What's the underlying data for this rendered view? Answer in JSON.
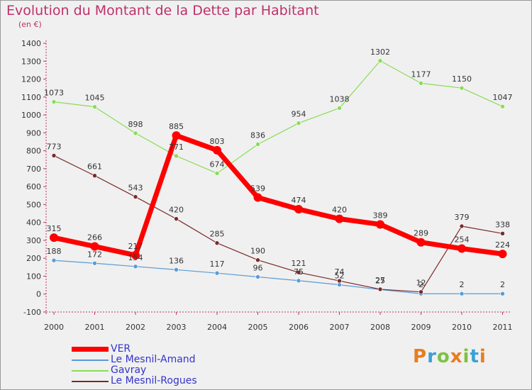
{
  "header": {
    "title": "Evolution du Montant de la Dette par Habitant",
    "subtitle": "(en €)"
  },
  "logo": {
    "text": "Proxiti"
  },
  "chart_data": {
    "type": "line",
    "title": "Evolution du Montant de la Dette par Habitant",
    "ylabel": "(en €)",
    "x": [
      "2000",
      "2001",
      "2002",
      "2003",
      "2004",
      "2005",
      "2006",
      "2007",
      "2008",
      "2009",
      "2010",
      "2011"
    ],
    "ylim": [
      -100,
      1400
    ],
    "yticks": [
      -100,
      0,
      100,
      200,
      300,
      400,
      500,
      600,
      700,
      800,
      900,
      1000,
      1100,
      1200,
      1300,
      1400
    ],
    "grid": false,
    "legend": "bottom-left",
    "series": [
      {
        "name": "VER",
        "color": "#ff0000",
        "values": [
          315,
          266,
          217,
          885,
          803,
          539,
          474,
          420,
          389,
          289,
          254,
          224
        ]
      },
      {
        "name": "Le Mesnil-Amand",
        "color": "#5a9bd5",
        "values": [
          188,
          172,
          154,
          136,
          117,
          96,
          75,
          52,
          25,
          2,
          2,
          2
        ]
      },
      {
        "name": "Gavray",
        "color": "#88dd55",
        "values": [
          1073,
          1045,
          898,
          771,
          674,
          836,
          954,
          1038,
          1302,
          1177,
          1150,
          1047
        ]
      },
      {
        "name": "Le Mesnil-Rogues",
        "color": "#7a2a2a",
        "values": [
          773,
          661,
          543,
          420,
          285,
          190,
          121,
          74,
          27,
          12,
          379,
          338
        ]
      }
    ],
    "data_labels": {
      "VER": [
        "315",
        "266",
        "217",
        "885",
        "803",
        "539",
        "474",
        "420",
        "389",
        "289",
        "254",
        "224"
      ],
      "Le Mesnil-Amand": [
        "188",
        "172",
        "154",
        "136",
        "117",
        "96",
        "75",
        "52",
        "25",
        "2",
        "2",
        "2"
      ],
      "Gavray": [
        "1073",
        "1045",
        "898",
        "771",
        "674",
        "836",
        "954",
        "1038",
        "1302",
        "1177",
        "1150",
        "1047"
      ],
      "Le Mesnil-Rogues": [
        "773",
        "661",
        "543",
        "420",
        "285",
        "190",
        "121",
        "74",
        "27",
        "12",
        "379",
        "338"
      ]
    }
  }
}
